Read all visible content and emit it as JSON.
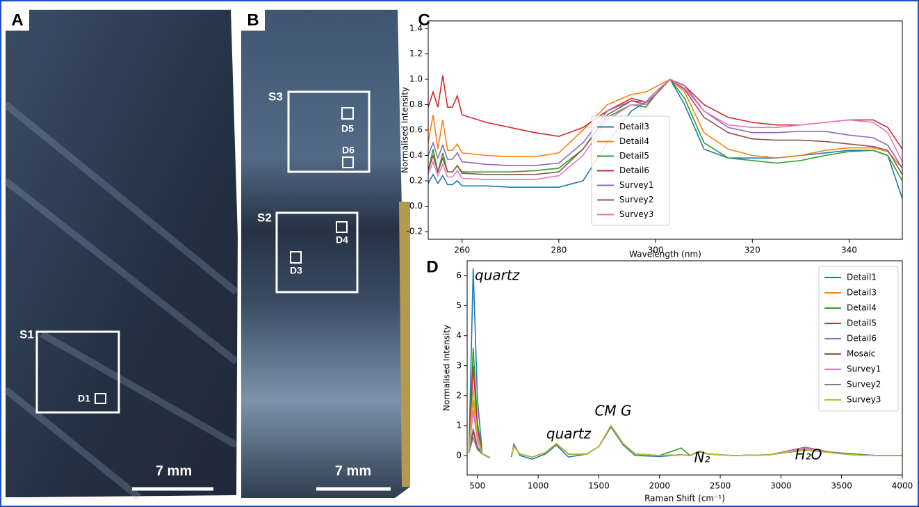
{
  "panel_labels": [
    "A",
    "B",
    "C",
    "D"
  ],
  "photos": [
    {
      "labels": [
        "S1",
        "D1"
      ],
      "scale": "7 mm"
    },
    {
      "labels": [
        "S3",
        "D5",
        "D6",
        "S2",
        "D4",
        "D3"
      ],
      "scale": "7 mm"
    }
  ],
  "chart_data": [
    {
      "type": "line",
      "xlabel": "Wavelength (nm)",
      "ylabel": "Normalised Intensity",
      "xlim": [
        253,
        351
      ],
      "ylim": [
        -0.26,
        1.46
      ],
      "xticks": [
        260,
        280,
        300,
        320,
        340
      ],
      "yticks": [
        -0.2,
        {
          "value": 0,
          "label": "0.0"
        },
        0.2,
        0.4,
        0.6,
        0.8,
        {
          "value": 1,
          "label": "1.0"
        },
        1.2,
        1.4
      ],
      "legend": "center",
      "x": [
        253,
        254,
        255,
        256,
        257,
        258,
        259,
        260,
        265,
        270,
        275,
        280,
        285,
        290,
        295,
        298,
        300,
        303,
        306,
        310,
        315,
        320,
        325,
        330,
        335,
        340,
        345,
        348,
        351
      ],
      "series": [
        {
          "name": "Detail3",
          "color": "#1f77b4",
          "values": [
            0.18,
            0.25,
            0.18,
            0.24,
            0.17,
            0.17,
            0.2,
            0.16,
            0.16,
            0.15,
            0.15,
            0.15,
            0.2,
            0.5,
            0.75,
            0.82,
            0.9,
            1.0,
            0.8,
            0.45,
            0.38,
            0.38,
            0.38,
            0.4,
            0.42,
            0.44,
            0.44,
            0.4,
            0.06
          ]
        },
        {
          "name": "Detail4",
          "color": "#ff7f0e",
          "values": [
            0.5,
            0.72,
            0.45,
            0.68,
            0.44,
            0.44,
            0.49,
            0.42,
            0.4,
            0.39,
            0.39,
            0.42,
            0.6,
            0.8,
            0.88,
            0.9,
            0.94,
            1.0,
            0.9,
            0.58,
            0.45,
            0.4,
            0.38,
            0.4,
            0.44,
            0.46,
            0.46,
            0.43,
            0.3
          ]
        },
        {
          "name": "Detail5",
          "color": "#2ca02c",
          "values": [
            0.28,
            0.45,
            0.27,
            0.42,
            0.27,
            0.27,
            0.32,
            0.27,
            0.27,
            0.27,
            0.28,
            0.3,
            0.45,
            0.7,
            0.8,
            0.78,
            0.88,
            1.0,
            0.85,
            0.5,
            0.38,
            0.36,
            0.34,
            0.36,
            0.4,
            0.43,
            0.44,
            0.4,
            0.2
          ]
        },
        {
          "name": "Detail6",
          "color": "#d62728",
          "values": [
            0.78,
            0.9,
            0.78,
            1.03,
            0.78,
            0.78,
            0.87,
            0.72,
            0.66,
            0.62,
            0.58,
            0.55,
            0.62,
            0.75,
            0.85,
            0.82,
            0.9,
            1.0,
            0.95,
            0.8,
            0.7,
            0.66,
            0.64,
            0.64,
            0.66,
            0.68,
            0.68,
            0.62,
            0.45
          ]
        },
        {
          "name": "Survey1",
          "color": "#9467bd",
          "values": [
            0.4,
            0.5,
            0.38,
            0.48,
            0.37,
            0.37,
            0.42,
            0.35,
            0.33,
            0.32,
            0.32,
            0.34,
            0.5,
            0.75,
            0.83,
            0.82,
            0.9,
            1.0,
            0.95,
            0.75,
            0.62,
            0.58,
            0.58,
            0.59,
            0.59,
            0.56,
            0.54,
            0.48,
            0.3
          ]
        },
        {
          "name": "Survey2",
          "color": "#8c564b",
          "values": [
            0.28,
            0.4,
            0.27,
            0.38,
            0.27,
            0.27,
            0.32,
            0.26,
            0.25,
            0.25,
            0.25,
            0.27,
            0.45,
            0.72,
            0.83,
            0.8,
            0.88,
            1.0,
            0.92,
            0.7,
            0.58,
            0.53,
            0.52,
            0.52,
            0.51,
            0.49,
            0.47,
            0.44,
            0.25
          ]
        },
        {
          "name": "Survey3",
          "color": "#e377c2",
          "values": [
            0.25,
            0.35,
            0.24,
            0.33,
            0.23,
            0.23,
            0.28,
            0.22,
            0.21,
            0.21,
            0.21,
            0.24,
            0.4,
            0.68,
            0.8,
            0.8,
            0.9,
            1.0,
            0.93,
            0.75,
            0.64,
            0.62,
            0.62,
            0.64,
            0.66,
            0.68,
            0.66,
            0.58,
            0.35
          ]
        }
      ]
    },
    {
      "type": "line",
      "xlabel": "Raman Shift (cm⁻¹)",
      "ylabel": "Normalised Intensity",
      "xlim": [
        415,
        4000
      ],
      "ylim": [
        -0.65,
        6.5
      ],
      "xticks": [
        500,
        1000,
        1500,
        2000,
        2500,
        3000,
        3500,
        4000
      ],
      "yticks": [
        0,
        1,
        2,
        3,
        4,
        5,
        6
      ],
      "legend": "upper right",
      "annotations": [
        "quartz",
        "quartz",
        "CM G",
        "N₂",
        "H₂O"
      ],
      "x": [
        430,
        465,
        500,
        540,
        600,
        700,
        780,
        800,
        850,
        950,
        1060,
        1150,
        1250,
        1400,
        1500,
        1600,
        1700,
        1800,
        2000,
        2180,
        2250,
        2330,
        2400,
        2600,
        2900,
        3200,
        3400,
        3600,
        3800,
        4000
      ],
      "series": [
        {
          "name": "Detail1",
          "color": "#1f77b4",
          "values": [
            0.1,
            6.25,
            1.9,
            0.05,
            -0.08,
            null,
            -0.05,
            0.38,
            0.0,
            -0.12,
            0.05,
            0.35,
            -0.05,
            0.05,
            0.3,
            0.95,
            0.35,
            0.0,
            -0.03,
            0.02,
            0.0,
            0.12,
            0.05,
            0.0,
            0.02,
            0.2,
            0.12,
            0.05,
            0.0,
            0.0
          ]
        },
        {
          "name": "Detail3",
          "color": "#ff7f0e",
          "values": [
            0.1,
            1.85,
            0.6,
            0.05,
            -0.05,
            null,
            0.0,
            0.3,
            0.05,
            -0.05,
            0.1,
            0.4,
            0.05,
            0.05,
            0.3,
            1.0,
            0.4,
            0.05,
            0.0,
            0.02,
            0.0,
            0.15,
            0.05,
            0.0,
            0.02,
            0.22,
            0.1,
            0.02,
            0.0,
            0.0
          ]
        },
        {
          "name": "Detail4",
          "color": "#2ca02c",
          "values": [
            0.1,
            3.6,
            1.1,
            0.05,
            -0.05,
            null,
            0.0,
            0.32,
            0.05,
            -0.05,
            0.1,
            0.38,
            0.05,
            0.05,
            0.3,
            1.0,
            0.38,
            0.05,
            0.0,
            0.25,
            0.0,
            0.15,
            0.05,
            0.0,
            0.02,
            0.18,
            0.1,
            0.02,
            0.0,
            0.0
          ]
        },
        {
          "name": "Detail5",
          "color": "#d62728",
          "values": [
            0.1,
            3.0,
            0.9,
            0.05,
            -0.05,
            null,
            0.0,
            0.3,
            0.05,
            -0.05,
            0.1,
            0.4,
            0.05,
            0.05,
            0.3,
            1.0,
            0.4,
            0.05,
            0.0,
            0.02,
            0.0,
            0.15,
            0.05,
            0.0,
            0.02,
            0.2,
            0.1,
            0.02,
            0.0,
            0.0
          ]
        },
        {
          "name": "Detail6",
          "color": "#9467bd",
          "values": [
            0.1,
            0.9,
            0.3,
            0.05,
            -0.05,
            null,
            0.0,
            0.3,
            0.05,
            -0.05,
            0.1,
            0.4,
            0.05,
            0.05,
            0.3,
            1.0,
            0.4,
            0.05,
            0.0,
            0.02,
            0.0,
            0.15,
            0.05,
            0.0,
            0.02,
            0.28,
            0.12,
            0.02,
            0.0,
            0.0
          ]
        },
        {
          "name": "Mosaic",
          "color": "#8c564b",
          "values": [
            0.1,
            0.8,
            0.25,
            0.05,
            -0.05,
            null,
            0.0,
            0.3,
            0.05,
            -0.05,
            0.1,
            0.4,
            0.05,
            0.05,
            0.3,
            1.0,
            0.4,
            0.05,
            0.0,
            0.02,
            0.0,
            0.15,
            0.05,
            0.0,
            0.02,
            0.2,
            0.1,
            0.02,
            0.0,
            0.0
          ]
        },
        {
          "name": "Survey1",
          "color": "#e377c2",
          "values": [
            0.1,
            1.5,
            0.5,
            0.05,
            -0.05,
            null,
            0.0,
            0.3,
            0.05,
            -0.05,
            0.1,
            0.4,
            0.05,
            0.05,
            0.3,
            1.0,
            0.4,
            0.05,
            0.0,
            0.02,
            0.0,
            0.15,
            0.05,
            0.0,
            0.02,
            0.25,
            0.1,
            0.02,
            0.0,
            0.0
          ]
        },
        {
          "name": "Survey2",
          "color": "#7f7f7f",
          "values": [
            0.1,
            0.6,
            0.2,
            0.05,
            -0.05,
            null,
            0.0,
            0.3,
            0.05,
            -0.05,
            0.1,
            0.4,
            0.05,
            0.05,
            0.3,
            1.0,
            0.4,
            0.05,
            0.0,
            0.02,
            0.0,
            0.15,
            0.05,
            0.0,
            0.02,
            0.2,
            0.1,
            0.02,
            0.0,
            0.0
          ]
        },
        {
          "name": "Survey3",
          "color": "#bcbd22",
          "values": [
            0.1,
            2.2,
            0.7,
            0.05,
            -0.05,
            null,
            0.0,
            0.3,
            0.05,
            -0.05,
            0.1,
            0.4,
            0.05,
            0.05,
            0.3,
            1.0,
            0.4,
            0.05,
            0.0,
            0.02,
            0.0,
            0.15,
            0.05,
            0.0,
            0.02,
            0.2,
            0.1,
            0.02,
            0.0,
            0.0
          ]
        }
      ]
    }
  ]
}
